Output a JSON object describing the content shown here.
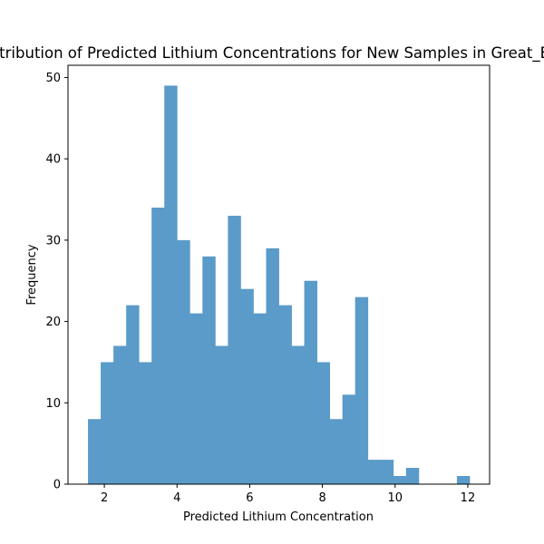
{
  "chart_data": {
    "type": "bar",
    "title": "Distribution of Predicted Lithium Concentrations for New Samples in Great_Basin",
    "xlabel": "Predicted Lithium Concentration",
    "ylabel": "Frequency",
    "xlim": [
      1.0,
      12.6
    ],
    "ylim": [
      0,
      51.5
    ],
    "xticks": [
      2,
      4,
      6,
      8,
      10,
      12
    ],
    "yticks": [
      0,
      10,
      20,
      30,
      40,
      50
    ],
    "grid": false,
    "bar_color": "#5a9bc9",
    "bins": [
      {
        "x0": 1.55,
        "x1": 1.9,
        "count": 8
      },
      {
        "x0": 1.9,
        "x1": 2.25,
        "count": 15
      },
      {
        "x0": 2.25,
        "x1": 2.6,
        "count": 17
      },
      {
        "x0": 2.6,
        "x1": 2.95,
        "count": 22
      },
      {
        "x0": 2.95,
        "x1": 3.3,
        "count": 15
      },
      {
        "x0": 3.3,
        "x1": 3.65,
        "count": 34
      },
      {
        "x0": 3.65,
        "x1": 4.0,
        "count": 49
      },
      {
        "x0": 4.0,
        "x1": 4.35,
        "count": 30
      },
      {
        "x0": 4.35,
        "x1": 4.7,
        "count": 21
      },
      {
        "x0": 4.7,
        "x1": 5.05,
        "count": 28
      },
      {
        "x0": 5.05,
        "x1": 5.4,
        "count": 17
      },
      {
        "x0": 5.4,
        "x1": 5.75,
        "count": 33
      },
      {
        "x0": 5.75,
        "x1": 6.1,
        "count": 24
      },
      {
        "x0": 6.1,
        "x1": 6.45,
        "count": 21
      },
      {
        "x0": 6.45,
        "x1": 6.8,
        "count": 29
      },
      {
        "x0": 6.8,
        "x1": 7.15,
        "count": 22
      },
      {
        "x0": 7.15,
        "x1": 7.5,
        "count": 17
      },
      {
        "x0": 7.5,
        "x1": 7.85,
        "count": 25
      },
      {
        "x0": 7.85,
        "x1": 8.2,
        "count": 15
      },
      {
        "x0": 8.2,
        "x1": 8.55,
        "count": 8
      },
      {
        "x0": 8.55,
        "x1": 8.9,
        "count": 11
      },
      {
        "x0": 8.9,
        "x1": 9.25,
        "count": 23
      },
      {
        "x0": 9.25,
        "x1": 9.6,
        "count": 3
      },
      {
        "x0": 9.6,
        "x1": 9.95,
        "count": 3
      },
      {
        "x0": 9.95,
        "x1": 10.3,
        "count": 1
      },
      {
        "x0": 10.3,
        "x1": 10.65,
        "count": 2
      },
      {
        "x0": 10.65,
        "x1": 11.0,
        "count": 0
      },
      {
        "x0": 11.0,
        "x1": 11.35,
        "count": 0
      },
      {
        "x0": 11.35,
        "x1": 11.7,
        "count": 0
      },
      {
        "x0": 11.7,
        "x1": 12.05,
        "count": 1
      }
    ]
  }
}
